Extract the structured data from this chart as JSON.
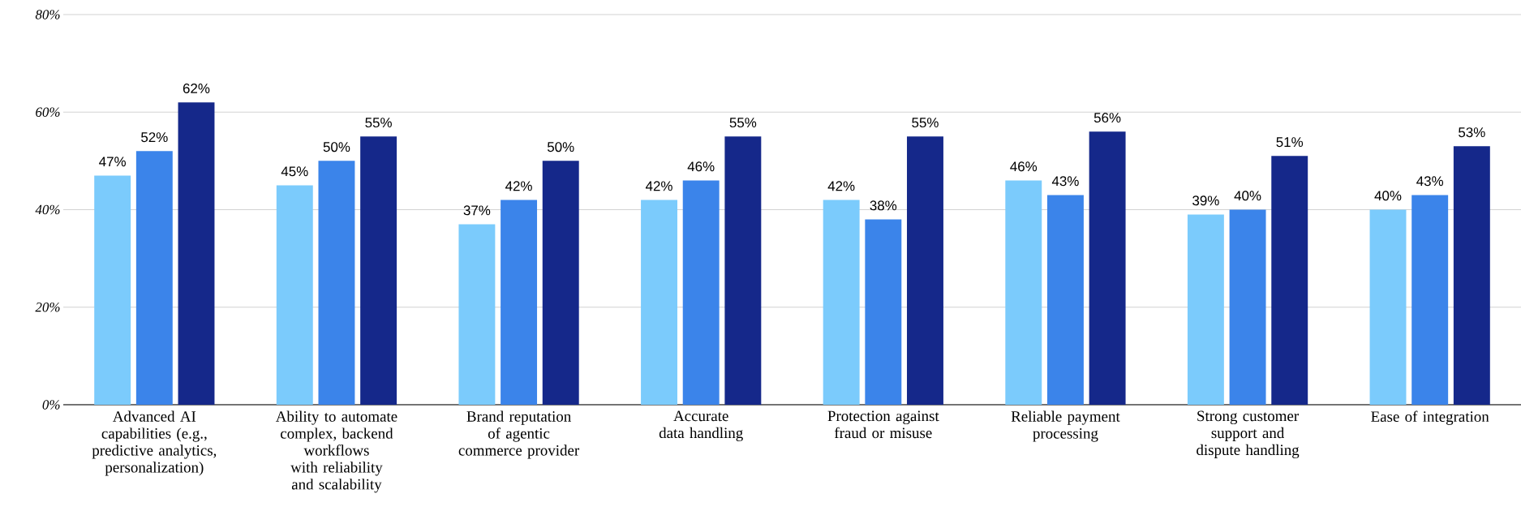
{
  "chart_data": {
    "type": "bar",
    "categories": [
      "Advanced AI capabilities (e.g., predictive analytics, personalization)",
      "Ability to automate complex, backend workflows with reliability and scalability",
      "Brand reputation of agentic commerce provider",
      "Accurate data handling",
      "Protection against fraud or misuse",
      "Reliable payment processing",
      "Strong customer support and dispute handling",
      "Ease of integration"
    ],
    "series": [
      {
        "color": "#7bcbfc",
        "values": [
          47,
          45,
          37,
          42,
          42,
          46,
          39,
          40
        ],
        "value_labels": [
          "47%",
          "45%",
          "37%",
          "42%",
          "42%",
          "46%",
          "39%",
          "40%"
        ]
      },
      {
        "color": "#3b84ea",
        "values": [
          52,
          50,
          42,
          46,
          38,
          43,
          40,
          43
        ],
        "value_labels": [
          "52%",
          "50%",
          "42%",
          "46%",
          "38%",
          "43%",
          "40%",
          "43%"
        ]
      },
      {
        "color": "#15288a",
        "values": [
          62,
          55,
          50,
          55,
          55,
          56,
          51,
          53
        ],
        "value_labels": [
          "62%",
          "55%",
          "50%",
          "55%",
          "55%",
          "56%",
          "51%",
          "53%"
        ]
      }
    ],
    "ylim": [
      0,
      80
    ],
    "yticks": [
      {
        "value": 0,
        "label": "0%"
      },
      {
        "value": 20,
        "label": "20%"
      },
      {
        "value": 40,
        "label": "40%"
      },
      {
        "value": 60,
        "label": "60%"
      },
      {
        "value": 80,
        "label": "80%"
      }
    ],
    "grid": "y"
  }
}
